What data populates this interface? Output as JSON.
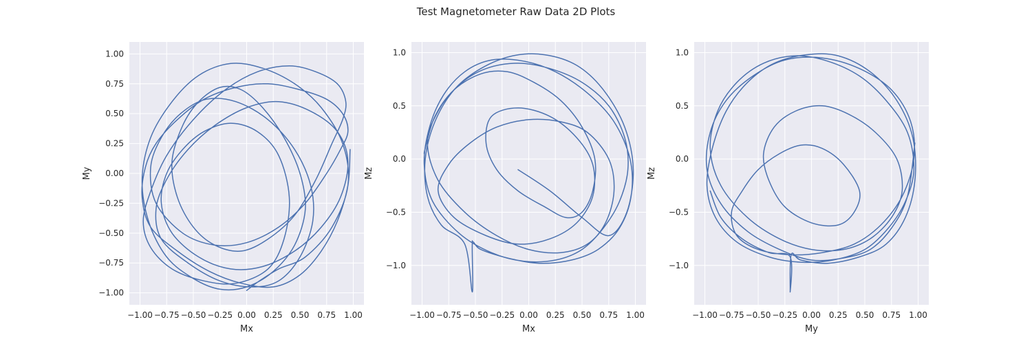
{
  "figure": {
    "title": "Test Magnetometer Raw Data 2D Plots",
    "background": "#ffffff",
    "axes_background": "#EAEAF2",
    "grid_color": "#ffffff",
    "line_color": "#4C72B0"
  },
  "chart_data": [
    {
      "type": "line",
      "title": "",
      "xlabel": "Mx",
      "ylabel": "My",
      "xlim": [
        -1.1,
        1.1
      ],
      "ylim": [
        -1.1,
        1.1
      ],
      "grid": true,
      "xticks": [
        -1.0,
        -0.75,
        -0.5,
        -0.25,
        0.0,
        0.25,
        0.5,
        0.75,
        1.0
      ],
      "xtick_labels": [
        "−1.00",
        "−0.75",
        "−0.50",
        "−0.25",
        "0.00",
        "0.25",
        "0.50",
        "0.75",
        "1.00"
      ],
      "yticks": [
        -1.0,
        -0.75,
        -0.5,
        -0.25,
        0.0,
        0.25,
        0.5,
        0.75,
        1.0
      ],
      "ytick_labels": [
        "−1.00",
        "−0.75",
        "−0.50",
        "−0.25",
        "0.00",
        "0.25",
        "0.50",
        "0.75",
        "1.00"
      ],
      "series": [
        {
          "color": "#4C72B0",
          "x": [
            0.0,
            0.12,
            0.3,
            0.55,
            0.8,
            0.95,
            0.9,
            0.7,
            0.45,
            0.15,
            -0.15,
            -0.45,
            -0.7,
            -0.9,
            -0.98,
            -0.92,
            -0.75,
            -0.5,
            -0.25,
            0.0,
            0.25,
            0.45,
            0.55,
            0.5,
            0.35,
            0.15,
            -0.05,
            -0.25,
            -0.45,
            -0.6,
            -0.7,
            -0.65,
            -0.5,
            -0.3,
            -0.05,
            0.2,
            0.45,
            0.65,
            0.8,
            0.9,
            0.93,
            0.85,
            0.65,
            0.4,
            0.1,
            -0.2,
            -0.5,
            -0.75,
            -0.9,
            -0.97,
            -0.9,
            -0.7,
            -0.4,
            -0.1,
            0.2,
            0.35,
            0.4,
            0.3,
            0.1,
            -0.15,
            -0.4,
            -0.6,
            -0.75,
            -0.8,
            -0.7,
            -0.45,
            -0.15,
            0.15,
            0.45,
            0.7,
            0.88,
            0.95,
            0.85,
            0.6,
            0.3,
            0.0,
            -0.3,
            -0.55,
            -0.75,
            -0.85,
            -0.8,
            -0.55,
            -0.25,
            0.05,
            0.3,
            0.5,
            0.62,
            0.6,
            0.45,
            0.2,
            -0.1,
            -0.38,
            -0.62,
            -0.8,
            -0.9,
            -0.85,
            -0.6,
            -0.3,
            0.0,
            0.3,
            0.55,
            0.75,
            0.88,
            0.95,
            0.9,
            0.75,
            0.5,
            0.2,
            -0.1,
            -0.4,
            -0.65,
            -0.85,
            -0.95,
            -0.98,
            -0.9,
            -0.65,
            -0.35,
            -0.05,
            0.25,
            0.5,
            0.7,
            0.85,
            0.95,
            0.97
          ],
          "y": [
            -0.98,
            -0.9,
            -0.8,
            -0.7,
            -0.45,
            -0.1,
            0.25,
            0.55,
            0.75,
            0.88,
            0.92,
            0.82,
            0.6,
            0.3,
            -0.05,
            -0.4,
            -0.7,
            -0.88,
            -0.97,
            -0.95,
            -0.82,
            -0.6,
            -0.3,
            0.0,
            0.3,
            0.55,
            0.7,
            0.72,
            0.6,
            0.4,
            0.1,
            -0.2,
            -0.45,
            -0.6,
            -0.65,
            -0.55,
            -0.35,
            -0.05,
            0.25,
            0.45,
            0.6,
            0.75,
            0.85,
            0.9,
            0.85,
            0.7,
            0.45,
            0.15,
            -0.15,
            -0.4,
            -0.62,
            -0.8,
            -0.9,
            -0.92,
            -0.8,
            -0.55,
            -0.2,
            0.15,
            0.35,
            0.42,
            0.35,
            0.2,
            0.0,
            -0.25,
            -0.5,
            -0.7,
            -0.8,
            -0.78,
            -0.65,
            -0.45,
            -0.2,
            0.1,
            0.35,
            0.52,
            0.6,
            0.55,
            0.4,
            0.2,
            -0.05,
            -0.3,
            -0.55,
            -0.75,
            -0.9,
            -0.95,
            -0.9,
            -0.7,
            -0.4,
            -0.1,
            0.2,
            0.45,
            0.6,
            0.62,
            0.5,
            0.3,
            0.05,
            -0.25,
            -0.5,
            -0.6,
            -0.58,
            -0.45,
            -0.25,
            0.0,
            0.2,
            0.35,
            0.5,
            0.62,
            0.7,
            0.75,
            0.72,
            0.62,
            0.45,
            0.25,
            0.05,
            -0.2,
            -0.45,
            -0.65,
            -0.82,
            -0.92,
            -0.95,
            -0.85,
            -0.65,
            -0.4,
            -0.1,
            0.2
          ]
        }
      ]
    },
    {
      "type": "line",
      "title": "",
      "xlabel": "Mx",
      "ylabel": "Mz",
      "xlim": [
        -1.1,
        1.1
      ],
      "ylim": [
        -1.37,
        1.1
      ],
      "grid": true,
      "xticks": [
        -1.0,
        -0.75,
        -0.5,
        -0.25,
        0.0,
        0.25,
        0.5,
        0.75,
        1.0
      ],
      "xtick_labels": [
        "−1.00",
        "−0.75",
        "−0.50",
        "−0.25",
        "0.00",
        "0.25",
        "0.50",
        "0.75",
        "1.00"
      ],
      "yticks": [
        -1.0,
        -0.5,
        0.0,
        0.5,
        1.0
      ],
      "ytick_labels": [
        "−1.0",
        "−0.5",
        "0.0",
        "0.5",
        "1.0"
      ],
      "series": [
        {
          "color": "#4C72B0",
          "x": [
            -0.1,
            0.2,
            0.5,
            0.75,
            0.92,
            0.98,
            0.9,
            0.7,
            0.45,
            0.15,
            -0.15,
            -0.45,
            -0.7,
            -0.88,
            -0.97,
            -0.95,
            -0.82,
            -0.6,
            -0.53,
            -0.53,
            -0.52,
            -0.45,
            -0.2,
            0.1,
            0.4,
            0.65,
            0.85,
            0.96,
            0.95,
            0.8,
            0.55,
            0.25,
            -0.05,
            -0.35,
            -0.6,
            -0.8,
            -0.93,
            -0.98,
            -0.9,
            -0.65,
            -0.35,
            -0.05,
            0.25,
            0.5,
            0.7,
            0.85,
            0.93,
            0.9,
            0.75,
            0.5,
            0.2,
            -0.1,
            -0.4,
            -0.65,
            -0.85,
            -0.95,
            -0.85,
            -0.6,
            -0.3,
            0.0,
            0.3,
            0.55,
            0.72,
            0.8,
            0.75,
            0.55,
            0.3,
            0.0,
            -0.3,
            -0.55,
            -0.75,
            -0.85,
            -0.7,
            -0.4,
            -0.1,
            0.2,
            0.45,
            0.6,
            0.6,
            0.45,
            0.2,
            -0.1,
            -0.35,
            -0.4,
            -0.3,
            -0.1,
            0.15,
            0.35,
            0.5,
            0.6,
            0.62,
            0.5,
            0.3,
            0.05,
            -0.2,
            -0.45,
            -0.7,
            -0.88,
            -0.97,
            -0.98
          ],
          "y": [
            -0.1,
            -0.3,
            -0.55,
            -0.72,
            -0.5,
            -0.1,
            0.3,
            0.65,
            0.88,
            0.98,
            0.97,
            0.85,
            0.65,
            0.35,
            0.0,
            -0.35,
            -0.62,
            -0.8,
            -1.25,
            -0.82,
            -0.78,
            -0.85,
            -0.93,
            -0.98,
            -0.95,
            -0.85,
            -0.65,
            -0.35,
            0.0,
            0.35,
            0.62,
            0.82,
            0.92,
            0.93,
            0.82,
            0.6,
            0.3,
            -0.05,
            -0.4,
            -0.7,
            -0.88,
            -0.96,
            -0.95,
            -0.85,
            -0.65,
            -0.4,
            -0.1,
            0.2,
            0.5,
            0.72,
            0.85,
            0.9,
            0.85,
            0.7,
            0.45,
            0.15,
            -0.2,
            -0.5,
            -0.72,
            -0.85,
            -0.88,
            -0.8,
            -0.6,
            -0.3,
            0.0,
            0.25,
            0.35,
            0.37,
            0.3,
            0.15,
            -0.05,
            -0.3,
            -0.55,
            -0.72,
            -0.8,
            -0.75,
            -0.6,
            -0.35,
            -0.05,
            0.2,
            0.4,
            0.48,
            0.4,
            0.15,
            -0.1,
            -0.3,
            -0.45,
            -0.55,
            -0.5,
            -0.3,
            0.0,
            0.3,
            0.55,
            0.72,
            0.82,
            0.8,
            0.65,
            0.4,
            0.1,
            0.05
          ]
        }
      ]
    },
    {
      "type": "line",
      "title": "",
      "xlabel": "My",
      "ylabel": "Mz",
      "xlim": [
        -1.1,
        1.1
      ],
      "ylim": [
        -1.37,
        1.1
      ],
      "grid": true,
      "xticks": [
        -1.0,
        -0.75,
        -0.5,
        -0.25,
        0.0,
        0.25,
        0.5,
        0.75,
        1.0
      ],
      "xtick_labels": [
        "−1.00",
        "−0.75",
        "−0.50",
        "−0.25",
        "0.00",
        "0.25",
        "0.50",
        "0.75",
        "1.00"
      ],
      "yticks": [
        -1.0,
        -0.5,
        0.0,
        0.5,
        1.0
      ],
      "ytick_labels": [
        "−1.0",
        "−0.5",
        "0.0",
        "0.5",
        "1.0"
      ],
      "series": [
        {
          "color": "#4C72B0",
          "x": [
            -0.95,
            -0.85,
            -0.65,
            -0.4,
            -0.2,
            -0.2,
            -0.19,
            -0.1,
            0.15,
            0.45,
            0.7,
            0.88,
            0.97,
            0.95,
            0.8,
            0.55,
            0.25,
            -0.05,
            -0.35,
            -0.6,
            -0.8,
            -0.93,
            -0.98,
            -0.9,
            -0.7,
            -0.4,
            -0.1,
            0.2,
            0.5,
            0.72,
            0.88,
            0.96,
            0.9,
            0.7,
            0.45,
            0.15,
            -0.15,
            -0.45,
            -0.7,
            -0.88,
            -0.95,
            -0.85,
            -0.6,
            -0.3,
            0.0,
            0.3,
            0.55,
            0.75,
            0.85,
            0.8,
            0.6,
            0.35,
            0.1,
            -0.15,
            -0.35,
            -0.45,
            -0.4,
            -0.25,
            0.0,
            0.25,
            0.4,
            0.45,
            0.3,
            0.1,
            -0.1,
            -0.3,
            -0.5,
            -0.65,
            -0.75,
            -0.7,
            -0.5,
            -0.2,
            0.1,
            0.4,
            0.65,
            0.85,
            0.96,
            0.93,
            0.75,
            0.45,
            0.1,
            -0.25,
            -0.55,
            -0.8,
            -0.95,
            -0.98,
            -0.85,
            -0.6,
            -0.3,
            0.0,
            0.3,
            0.55,
            0.75,
            0.9,
            0.97
          ],
          "y": [
            -0.3,
            -0.55,
            -0.75,
            -0.88,
            -0.92,
            -1.25,
            -0.9,
            -0.95,
            -0.98,
            -0.92,
            -0.8,
            -0.55,
            -0.2,
            0.2,
            0.55,
            0.82,
            0.97,
            0.98,
            0.9,
            0.72,
            0.45,
            0.1,
            -0.25,
            -0.55,
            -0.78,
            -0.92,
            -0.97,
            -0.95,
            -0.85,
            -0.65,
            -0.4,
            -0.1,
            0.25,
            0.55,
            0.78,
            0.92,
            0.97,
            0.9,
            0.72,
            0.45,
            0.1,
            -0.25,
            -0.55,
            -0.75,
            -0.85,
            -0.85,
            -0.75,
            -0.55,
            -0.3,
            0.0,
            0.25,
            0.42,
            0.5,
            0.45,
            0.3,
            0.05,
            -0.2,
            -0.45,
            -0.6,
            -0.62,
            -0.5,
            -0.3,
            -0.05,
            0.1,
            0.13,
            0.05,
            -0.1,
            -0.3,
            -0.5,
            -0.72,
            -0.85,
            -0.9,
            -0.88,
            -0.8,
            -0.62,
            -0.35,
            0.0,
            0.35,
            0.65,
            0.85,
            0.95,
            0.93,
            0.78,
            0.55,
            0.25,
            -0.1,
            -0.42,
            -0.68,
            -0.85,
            -0.95,
            -0.93,
            -0.85,
            -0.65,
            -0.35,
            0.15
          ]
        }
      ]
    }
  ]
}
